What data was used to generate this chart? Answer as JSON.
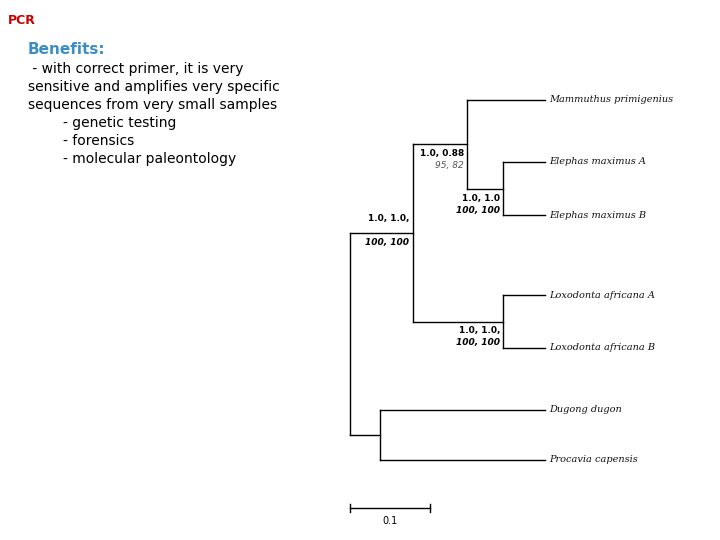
{
  "title": "PCR",
  "title_color": "#cc0000",
  "title_fontsize": 9,
  "benefits_title": "Benefits:",
  "benefits_title_color": "#3b8fc4",
  "benefits_title_fontsize": 11,
  "benefits_text_lines": [
    " - with correct primer, it is very",
    "sensitive and amplifies very specific",
    "sequences from very small samples",
    "        - genetic testing",
    "        - forensics",
    "        - molecular paleontology"
  ],
  "benefits_text_color": "#000000",
  "benefits_text_fontsize": 10,
  "background_color": "#ffffff",
  "tree_labels": [
    "Mammuthus primigenius",
    "Elephas maximus A",
    "Elephas maximus B",
    "Loxodonta africana A",
    "Loxodonta africana B",
    "Dugong dugon",
    "Procavia capensis"
  ],
  "scale_bar_label": "0.1",
  "tree_lw": 1.0
}
